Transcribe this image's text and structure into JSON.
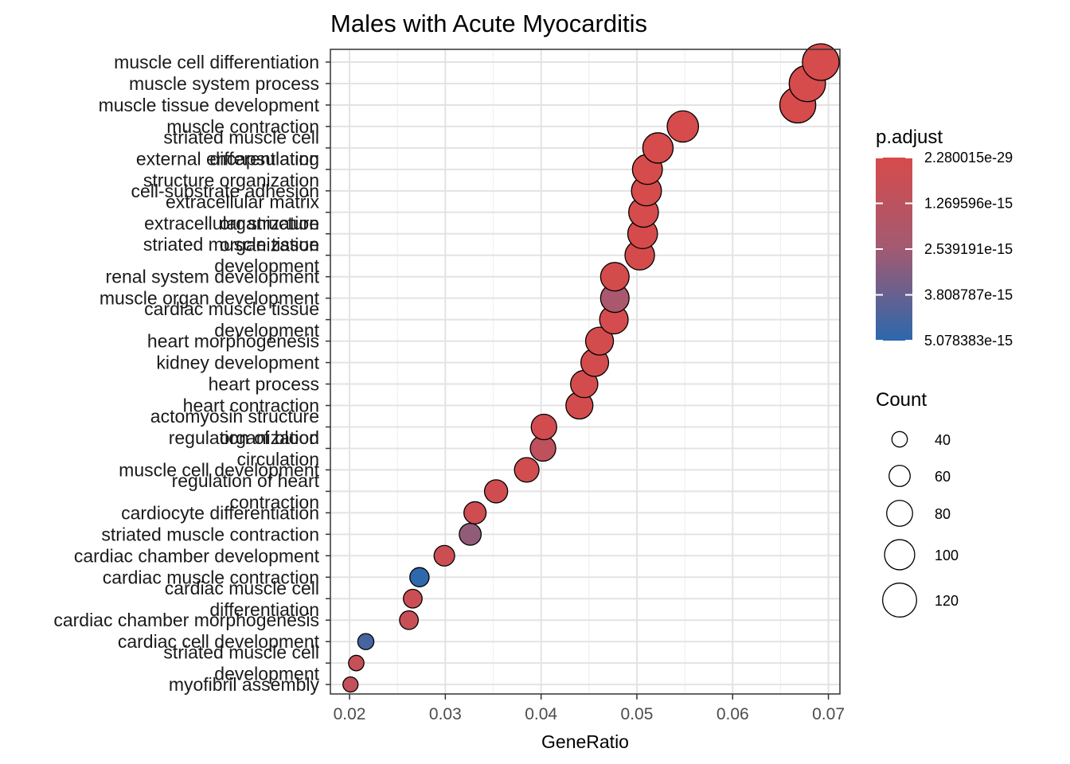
{
  "chart_data": {
    "type": "scatter",
    "title": "Males with Acute Myocarditis",
    "xlabel": "GeneRatio",
    "ylabel": "",
    "xlim": [
      0.018,
      0.0712
    ],
    "xticks": [
      0.02,
      0.03,
      0.04,
      0.05,
      0.06,
      0.07
    ],
    "xtick_labels": [
      "0.02",
      "0.03",
      "0.04",
      "0.05",
      "0.06",
      "0.07"
    ],
    "grid": true,
    "color_legend": {
      "title": "p.adjust",
      "labels": [
        "2.280015e-29",
        "1.269596e-15",
        "2.539191e-15",
        "3.808787e-15",
        "5.078383e-15"
      ],
      "low_color": "#d64b4b",
      "high_color": "#2b68ad"
    },
    "size_legend": {
      "title": "Count",
      "labels": [
        "40",
        "60",
        "80",
        "100",
        "120"
      ],
      "values": [
        40,
        60,
        80,
        100,
        120
      ]
    },
    "categories": [
      "muscle cell differentiation",
      "muscle system process",
      "muscle tissue development",
      "muscle contraction",
      "striated muscle cell differentiation",
      "external encapsulating structure organization",
      "cell-substrate adhesion",
      "extracellular matrix organization",
      "extracellular structure organization",
      "striated muscle tissue development",
      "renal system development",
      "muscle organ development",
      "cardiac muscle tissue development",
      "heart morphogenesis",
      "kidney development",
      "heart process",
      "heart contraction",
      "actomyosin structure organization",
      "regulation of blood circulation",
      "muscle cell development",
      "regulation of heart contraction",
      "cardiocyte differentiation",
      "striated muscle contraction",
      "cardiac chamber development",
      "cardiac muscle contraction",
      "cardiac muscle cell differentiation",
      "cardiac chamber morphogenesis",
      "cardiac cell development",
      "striated muscle cell development",
      "myofibril assembly"
    ],
    "category_label_lines": [
      [
        "muscle cell differentiation"
      ],
      [
        "muscle system process"
      ],
      [
        "muscle tissue development"
      ],
      [
        "muscle contraction"
      ],
      [
        "striated muscle cell",
        "differentiation"
      ],
      [
        "external encapsulating",
        "structure organization"
      ],
      [
        "cell-substrate adhesion"
      ],
      [
        "extracellular matrix",
        "organization"
      ],
      [
        "extracellular structure",
        "organization"
      ],
      [
        "striated muscle tissue",
        "development"
      ],
      [
        "renal system development"
      ],
      [
        "muscle organ development"
      ],
      [
        "cardiac muscle tissue",
        "development"
      ],
      [
        "heart morphogenesis"
      ],
      [
        "kidney development"
      ],
      [
        "heart process"
      ],
      [
        "heart contraction"
      ],
      [
        "actomyosin structure",
        "organization"
      ],
      [
        "regulation of blood",
        "circulation"
      ],
      [
        "muscle cell development"
      ],
      [
        "regulation of heart",
        "contraction"
      ],
      [
        "cardiocyte differentiation"
      ],
      [
        "striated muscle contraction"
      ],
      [
        "cardiac chamber development"
      ],
      [
        "cardiac muscle contraction"
      ],
      [
        "cardiac muscle cell",
        "differentiation"
      ],
      [
        "cardiac chamber morphogenesis"
      ],
      [
        "cardiac cell development"
      ],
      [
        "striated muscle cell",
        "development"
      ],
      [
        "myofibril assembly"
      ]
    ],
    "gene_ratio": [
      0.0692,
      0.0678,
      0.0668,
      0.0548,
      0.0522,
      0.0511,
      0.051,
      0.0507,
      0.0506,
      0.0503,
      0.0477,
      0.0477,
      0.0476,
      0.0461,
      0.0456,
      0.0445,
      0.044,
      0.0403,
      0.0402,
      0.0385,
      0.0353,
      0.0331,
      0.0326,
      0.0299,
      0.0273,
      0.0266,
      0.0262,
      0.0217,
      0.0207,
      0.0201
    ],
    "count": [
      135,
      133,
      131,
      106,
      101,
      99,
      99,
      98,
      98,
      97,
      92,
      92,
      92,
      89,
      88,
      86,
      85,
      78,
      78,
      74,
      68,
      64,
      63,
      58,
      53,
      51,
      51,
      42,
      40,
      39
    ],
    "p_adjust": [
      2.3e-29,
      5e-20,
      1e-19,
      1e-18,
      2e-18,
      5e-18,
      1e-17,
      2e-17,
      3e-17,
      4e-17,
      8e-17,
      2.2e-15,
      1e-16,
      1.5e-16,
      1.6e-16,
      1.8e-16,
      2e-16,
      2.5e-16,
      1.1e-15,
      3e-16,
      3.5e-16,
      4e-16,
      2.9e-15,
      5e-16,
      5e-15,
      6e-16,
      7e-16,
      4.5e-15,
      8e-16,
      9e-16
    ]
  }
}
